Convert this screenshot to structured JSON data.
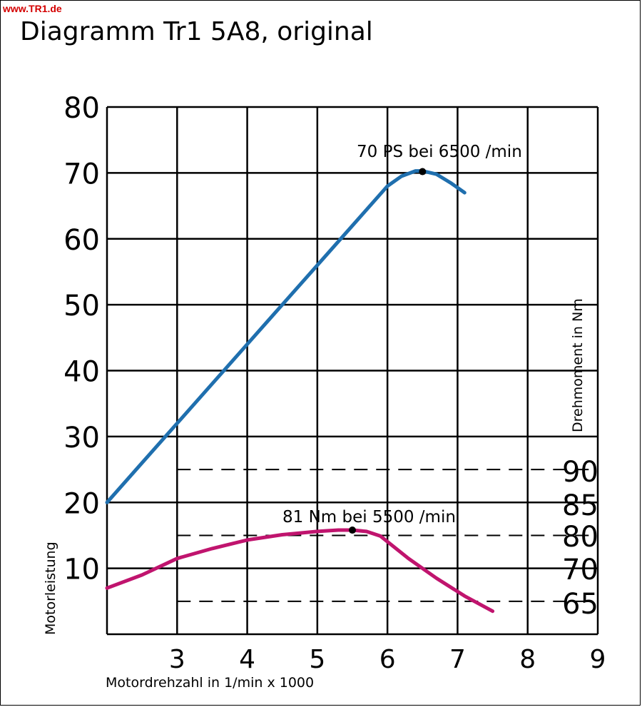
{
  "badge": "www.TR1.de",
  "chart_data": {
    "type": "line",
    "title": "Diagramm Tr1 5A8, original",
    "xlabel": "Motordrehzahl in 1/min x 1000",
    "ylabel": "Motorleistung",
    "y2label": "Drehmoment in Nm",
    "xlim": [
      2,
      9
    ],
    "ylim": [
      0,
      80
    ],
    "x_ticks": [
      "3",
      "4",
      "5",
      "6",
      "7",
      "8",
      "9"
    ],
    "y_ticks": [
      "10",
      "20",
      "30",
      "40",
      "50",
      "60",
      "70",
      "80"
    ],
    "y2_ticks": [
      "65",
      "70",
      "80",
      "85",
      "90"
    ],
    "grid": true,
    "series": [
      {
        "axis": "left",
        "color": "#1f6fae",
        "x": [
          2.0,
          2.5,
          3.0,
          3.5,
          4.0,
          4.5,
          5.0,
          5.5,
          6.0,
          6.2,
          6.4,
          6.5,
          6.7,
          6.9,
          7.1
        ],
        "y": [
          20.0,
          26.0,
          32.0,
          38.0,
          44.0,
          50.0,
          56.0,
          62.0,
          68.0,
          69.5,
          70.3,
          70.3,
          69.8,
          68.5,
          67.0
        ]
      },
      {
        "axis": "right",
        "color": "#c0146e",
        "x": [
          2.0,
          2.5,
          3.0,
          3.5,
          4.0,
          4.5,
          5.0,
          5.3,
          5.5,
          5.7,
          5.9,
          6.3,
          6.7,
          7.1,
          7.5
        ],
        "y": [
          7.0,
          9.0,
          11.5,
          13.0,
          14.3,
          15.1,
          15.6,
          15.8,
          15.8,
          15.6,
          14.9,
          11.5,
          8.5,
          5.8,
          3.5
        ]
      }
    ],
    "markers": [
      {
        "x": 6.5,
        "y": 70.2,
        "label": "70 PS bei 6500 /min"
      },
      {
        "x": 5.5,
        "y": 15.8,
        "label": "81 Nm bei 5500 /min"
      }
    ],
    "dashed_levels": [
      5.0,
      15.0,
      25.0
    ]
  }
}
